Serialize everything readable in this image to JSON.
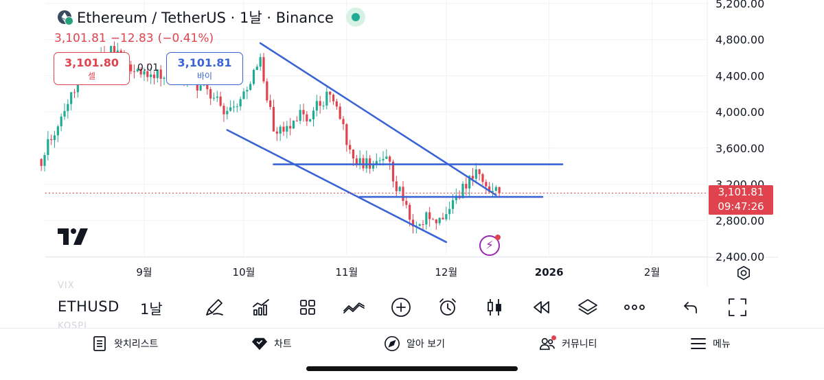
{
  "chart_header": {
    "symbol_title": "Ethereum / TetherUS · 1날 · Binance",
    "ohlc": {
      "close": "3,101.81",
      "change": "−12.83",
      "change_pct": "(−0.41%)"
    },
    "market_status_color": "#22ab94"
  },
  "quote": {
    "sell_price": "3,101.80",
    "sell_label": "셀",
    "spread": "0.01",
    "buy_price": "3,101.81",
    "buy_label": "바이"
  },
  "price_axis": {
    "ticks": [
      "5,200.00",
      "4,800.00",
      "4,400.00",
      "4,000.00",
      "3,600.00",
      "3,200.00",
      "2,800.00",
      "2,400.00"
    ],
    "last_price": "3,101.81",
    "countdown": "09:47:26"
  },
  "time_axis": {
    "ticks": [
      "9월",
      "10월",
      "11월",
      "12월",
      "2026",
      "2월"
    ]
  },
  "chart_data": {
    "type": "candlestick",
    "symbol": "ETHUSDT",
    "interval": "1D",
    "y_ticks": [
      5200,
      4800,
      4400,
      4000,
      3600,
      3200,
      2800,
      2400
    ],
    "x_ticks": [
      "9월",
      "10월",
      "11월",
      "12월",
      "2026",
      "2월"
    ],
    "last_price": 3101.81,
    "approx_close_path": [
      [
        "2025-08-01",
        3480
      ],
      [
        "2025-08-08",
        4020
      ],
      [
        "2025-08-15",
        4520
      ],
      [
        "2025-08-22",
        4700
      ],
      [
        "2025-09-01",
        4390
      ],
      [
        "2025-09-12",
        4450
      ],
      [
        "2025-09-22",
        4150
      ],
      [
        "2025-09-26",
        3930
      ],
      [
        "2025-10-06",
        4550
      ],
      [
        "2025-10-10",
        3810
      ],
      [
        "2025-10-20",
        3970
      ],
      [
        "2025-10-27",
        4170
      ],
      [
        "2025-11-04",
        3420
      ],
      [
        "2025-11-13",
        3450
      ],
      [
        "2025-11-21",
        2790
      ],
      [
        "2025-12-01",
        2830
      ],
      [
        "2025-12-09",
        3330
      ],
      [
        "2025-12-15",
        3115
      ],
      [
        "2025-12-17",
        3101.81
      ]
    ],
    "trendlines": [
      {
        "kind": "channel-upper",
        "from": [
          "2025-10-06",
          4760
        ],
        "to": [
          "2025-12-16",
          3080
        ]
      },
      {
        "kind": "channel-lower",
        "from": [
          "2025-09-26",
          3800
        ],
        "to": [
          "2025-12-01",
          2560
        ]
      },
      {
        "kind": "horizontal",
        "from": [
          "2025-10-10",
          3420
        ],
        "to": [
          "2026-01-05",
          3420
        ]
      },
      {
        "kind": "horizontal",
        "from": [
          "2025-11-05",
          3060
        ],
        "to": [
          "2025-12-30",
          3060
        ]
      }
    ],
    "up_color": "#22ab94",
    "down_color": "#e0434d",
    "line_color": "#3a63d6"
  },
  "ghost_labels": [
    "VIX",
    "KOSPI"
  ],
  "toolbar": {
    "symbol": "ETHUSD",
    "interval": "1날",
    "icons": [
      "brush-icon",
      "indicators-icon",
      "layout-grid-icon",
      "compare-icon",
      "add-icon",
      "alarm-icon",
      "candle-type-icon",
      "replay-icon",
      "layers-icon",
      "more-icon",
      "undo-icon",
      "fullscreen-icon"
    ]
  },
  "tabs": [
    {
      "label": "왓치리스트",
      "icon": "watchlist-icon"
    },
    {
      "label": "차트",
      "icon": "chart-diamond-icon"
    },
    {
      "label": "알아 보기",
      "icon": "compass-icon"
    },
    {
      "label": "커뮤니티",
      "icon": "community-icon"
    },
    {
      "label": "메뉴",
      "icon": "menu-icon"
    }
  ],
  "colors": {
    "up": "#22ab94",
    "down": "#e0434d",
    "trendline": "#3a63d6",
    "accent_purple": "#9b27b0"
  }
}
